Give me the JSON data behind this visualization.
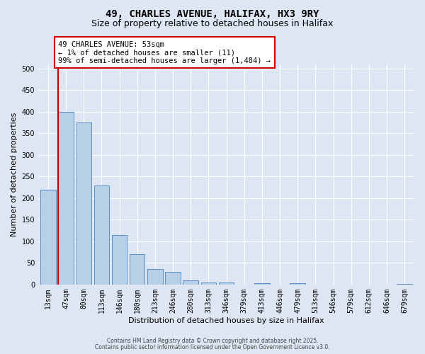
{
  "title": "49, CHARLES AVENUE, HALIFAX, HX3 9RY",
  "subtitle": "Size of property relative to detached houses in Halifax",
  "xlabel": "Distribution of detached houses by size in Halifax",
  "ylabel": "Number of detached properties",
  "categories": [
    "13sqm",
    "47sqm",
    "80sqm",
    "113sqm",
    "146sqm",
    "180sqm",
    "213sqm",
    "246sqm",
    "280sqm",
    "313sqm",
    "346sqm",
    "379sqm",
    "413sqm",
    "446sqm",
    "479sqm",
    "513sqm",
    "546sqm",
    "579sqm",
    "612sqm",
    "646sqm",
    "679sqm"
  ],
  "values": [
    220,
    400,
    375,
    230,
    115,
    70,
    35,
    30,
    10,
    5,
    5,
    0,
    3,
    0,
    3,
    0,
    0,
    0,
    0,
    0,
    1
  ],
  "bar_color": "#b8cfe8",
  "bar_edge_color": "#5b8dc8",
  "background_color": "#dde6f2",
  "vline_color": "#cc0000",
  "annotation_text": "49 CHARLES AVENUE: 53sqm\n← 1% of detached houses are smaller (11)\n99% of semi-detached houses are larger (1,484) →",
  "annotation_box_color": "#ffffff",
  "annotation_box_edge_color": "#cc0000",
  "ylim": [
    0,
    510
  ],
  "yticks": [
    0,
    50,
    100,
    150,
    200,
    250,
    300,
    350,
    400,
    450,
    500
  ],
  "footer1": "Contains HM Land Registry data © Crown copyright and database right 2025.",
  "footer2": "Contains public sector information licensed under the Open Government Licence v3.0.",
  "title_fontsize": 10,
  "subtitle_fontsize": 9,
  "tick_fontsize": 7,
  "ylabel_fontsize": 8,
  "xlabel_fontsize": 8,
  "annotation_fontsize": 7.5
}
